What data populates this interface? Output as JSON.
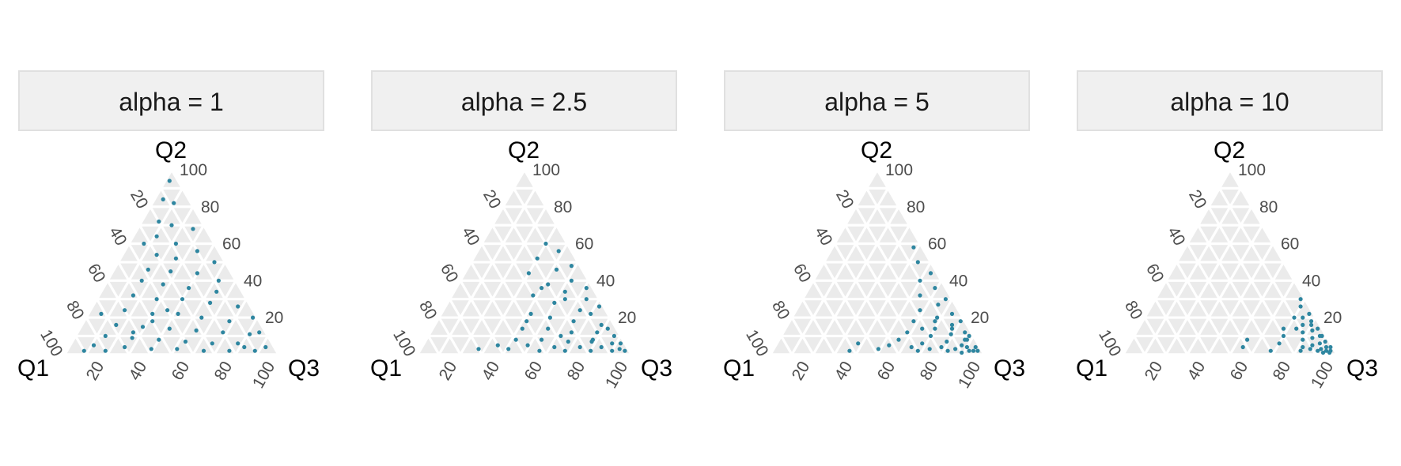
{
  "colors": {
    "point": "#2e86a0",
    "panel_cell": "#ebebeb",
    "grid_line": "#ffffff",
    "strip_fill": "#f0f0f0",
    "strip_border": "#e0e0e0",
    "tick_text": "#4d4d4d",
    "axis_text": "#000000"
  },
  "chart_data": [
    {
      "type": "scatter",
      "subtype": "ternary",
      "title": "alpha = 1",
      "axes": {
        "left": "Q1",
        "top": "Q2",
        "right": "Q3"
      },
      "ticks": [
        "20",
        "40",
        "60",
        "80",
        "100"
      ],
      "gridded": true,
      "distribution_note": "points spread roughly uniformly over the simplex",
      "points_q1_q2_q3": [
        [
          4,
          94,
          2
        ],
        [
          12,
          84,
          4
        ],
        [
          8,
          82,
          10
        ],
        [
          20,
          72,
          8
        ],
        [
          15,
          70,
          15
        ],
        [
          6,
          68,
          26
        ],
        [
          25,
          64,
          11
        ],
        [
          18,
          60,
          22
        ],
        [
          10,
          56,
          34
        ],
        [
          30,
          54,
          16
        ],
        [
          22,
          52,
          26
        ],
        [
          5,
          50,
          45
        ],
        [
          38,
          46,
          16
        ],
        [
          28,
          45,
          27
        ],
        [
          16,
          44,
          40
        ],
        [
          8,
          40,
          52
        ],
        [
          44,
          40,
          16
        ],
        [
          35,
          38,
          27
        ],
        [
          24,
          36,
          40
        ],
        [
          12,
          34,
          54
        ],
        [
          52,
          32,
          16
        ],
        [
          42,
          30,
          28
        ],
        [
          30,
          30,
          40
        ],
        [
          18,
          28,
          54
        ],
        [
          6,
          26,
          68
        ],
        [
          60,
          24,
          16
        ],
        [
          48,
          22,
          30
        ],
        [
          36,
          22,
          42
        ],
        [
          26,
          20,
          54
        ],
        [
          14,
          18,
          68
        ],
        [
          68,
          16,
          16
        ],
        [
          56,
          15,
          29
        ],
        [
          44,
          14,
          42
        ],
        [
          32,
          13,
          55
        ],
        [
          20,
          12,
          68
        ],
        [
          8,
          11,
          81
        ],
        [
          76,
          10,
          14
        ],
        [
          64,
          9,
          27
        ],
        [
          52,
          8,
          40
        ],
        [
          40,
          7,
          53
        ],
        [
          28,
          6,
          66
        ],
        [
          16,
          6,
          78
        ],
        [
          84,
          5,
          11
        ],
        [
          70,
          4,
          26
        ],
        [
          58,
          3,
          39
        ],
        [
          46,
          3,
          51
        ],
        [
          34,
          2,
          64
        ],
        [
          22,
          2,
          76
        ],
        [
          10,
          2,
          88
        ],
        [
          90,
          2,
          8
        ],
        [
          80,
          2,
          18
        ],
        [
          4,
          4,
          92
        ],
        [
          3,
          12,
          85
        ],
        [
          14,
          4,
          82
        ],
        [
          62,
          12,
          26
        ],
        [
          50,
          18,
          32
        ],
        [
          40,
          24,
          36
        ],
        [
          2,
          20,
          78
        ],
        [
          72,
          22,
          6
        ],
        [
          33,
          60,
          7
        ]
      ]
    },
    {
      "type": "scatter",
      "subtype": "ternary",
      "title": "alpha = 2.5",
      "axes": {
        "left": "Q1",
        "top": "Q2",
        "right": "Q3"
      },
      "ticks": [
        "20",
        "40",
        "60",
        "80",
        "100"
      ],
      "gridded": true,
      "distribution_note": "points concentrated toward the Q3 corner and low Q1",
      "points_q1_q2_q3": [
        [
          10,
          60,
          30
        ],
        [
          6,
          56,
          38
        ],
        [
          18,
          52,
          30
        ],
        [
          4,
          48,
          48
        ],
        [
          12,
          46,
          42
        ],
        [
          26,
          44,
          30
        ],
        [
          8,
          40,
          52
        ],
        [
          20,
          38,
          42
        ],
        [
          3,
          36,
          61
        ],
        [
          14,
          34,
          52
        ],
        [
          30,
          32,
          38
        ],
        [
          6,
          30,
          64
        ],
        [
          22,
          28,
          50
        ],
        [
          2,
          26,
          72
        ],
        [
          12,
          24,
          64
        ],
        [
          36,
          22,
          42
        ],
        [
          28,
          20,
          52
        ],
        [
          18,
          18,
          64
        ],
        [
          6,
          16,
          78
        ],
        [
          44,
          14,
          42
        ],
        [
          32,
          14,
          54
        ],
        [
          22,
          12,
          66
        ],
        [
          10,
          12,
          78
        ],
        [
          3,
          10,
          87
        ],
        [
          50,
          8,
          42
        ],
        [
          38,
          8,
          54
        ],
        [
          26,
          7,
          67
        ],
        [
          15,
          7,
          78
        ],
        [
          6,
          6,
          88
        ],
        [
          60,
          5,
          35
        ],
        [
          46,
          5,
          49
        ],
        [
          34,
          4,
          62
        ],
        [
          22,
          4,
          74
        ],
        [
          12,
          4,
          84
        ],
        [
          4,
          3,
          93
        ],
        [
          70,
          3,
          27
        ],
        [
          56,
          3,
          41
        ],
        [
          42,
          2,
          56
        ],
        [
          30,
          2,
          68
        ],
        [
          18,
          2,
          80
        ],
        [
          8,
          2,
          90
        ],
        [
          2,
          2,
          96
        ],
        [
          16,
          30,
          54
        ],
        [
          24,
          36,
          40
        ],
        [
          8,
          22,
          70
        ],
        [
          40,
          18,
          42
        ],
        [
          4,
          14,
          82
        ],
        [
          14,
          8,
          78
        ],
        [
          2,
          6,
          92
        ],
        [
          28,
          10,
          62
        ]
      ]
    },
    {
      "type": "scatter",
      "subtype": "ternary",
      "title": "alpha = 5",
      "axes": {
        "left": "Q1",
        "top": "Q2",
        "right": "Q3"
      },
      "ticks": [
        "20",
        "40",
        "60",
        "80",
        "100"
      ],
      "gridded": true,
      "distribution_note": "points concentrated near the Q3 corner",
      "points_q1_q2_q3": [
        [
          4,
          58,
          38
        ],
        [
          6,
          50,
          44
        ],
        [
          3,
          44,
          53
        ],
        [
          10,
          40,
          50
        ],
        [
          5,
          36,
          59
        ],
        [
          14,
          32,
          54
        ],
        [
          3,
          30,
          67
        ],
        [
          8,
          27,
          65
        ],
        [
          18,
          24,
          58
        ],
        [
          4,
          22,
          74
        ],
        [
          12,
          20,
          68
        ],
        [
          24,
          18,
          58
        ],
        [
          7,
          16,
          77
        ],
        [
          16,
          14,
          70
        ],
        [
          30,
          12,
          58
        ],
        [
          3,
          12,
          85
        ],
        [
          10,
          11,
          79
        ],
        [
          20,
          10,
          70
        ],
        [
          36,
          8,
          56
        ],
        [
          5,
          8,
          87
        ],
        [
          14,
          7,
          79
        ],
        [
          26,
          6,
          68
        ],
        [
          42,
          5,
          53
        ],
        [
          8,
          5,
          87
        ],
        [
          18,
          4,
          78
        ],
        [
          32,
          4,
          64
        ],
        [
          2,
          4,
          94
        ],
        [
          12,
          3,
          85
        ],
        [
          24,
          3,
          73
        ],
        [
          48,
          3,
          49
        ],
        [
          6,
          2,
          92
        ],
        [
          16,
          2,
          82
        ],
        [
          30,
          2,
          68
        ],
        [
          2,
          2,
          96
        ],
        [
          10,
          1,
          89
        ],
        [
          4,
          8,
          88
        ],
        [
          22,
          14,
          64
        ],
        [
          8,
          14,
          78
        ],
        [
          2,
          18,
          80
        ],
        [
          14,
          18,
          68
        ],
        [
          56,
          6,
          38
        ],
        [
          62,
          2,
          36
        ],
        [
          4,
          2,
          94
        ],
        [
          2,
          10,
          88
        ],
        [
          6,
          4,
          90
        ]
      ]
    },
    {
      "type": "scatter",
      "subtype": "ternary",
      "title": "alpha = 10",
      "axes": {
        "left": "Q1",
        "top": "Q2",
        "right": "Q3"
      },
      "ticks": [
        "20",
        "40",
        "60",
        "80",
        "100"
      ],
      "gridded": true,
      "distribution_note": "points tightly clustered at the Q3 corner",
      "points_q1_q2_q3": [
        [
          2,
          30,
          68
        ],
        [
          4,
          26,
          70
        ],
        [
          2,
          22,
          76
        ],
        [
          6,
          20,
          74
        ],
        [
          3,
          18,
          79
        ],
        [
          8,
          16,
          76
        ],
        [
          2,
          14,
          84
        ],
        [
          5,
          13,
          82
        ],
        [
          10,
          12,
          78
        ],
        [
          3,
          10,
          87
        ],
        [
          7,
          9,
          84
        ],
        [
          12,
          8,
          80
        ],
        [
          2,
          7,
          91
        ],
        [
          5,
          6,
          89
        ],
        [
          9,
          5,
          86
        ],
        [
          14,
          4,
          82
        ],
        [
          3,
          4,
          93
        ],
        [
          6,
          3,
          91
        ],
        [
          11,
          3,
          86
        ],
        [
          2,
          2,
          96
        ],
        [
          4,
          2,
          94
        ],
        [
          8,
          2,
          90
        ],
        [
          16,
          2,
          82
        ],
        [
          3,
          1,
          96
        ],
        [
          6,
          1,
          93
        ],
        [
          20,
          10,
          70
        ],
        [
          24,
          6,
          70
        ],
        [
          18,
          14,
          68
        ],
        [
          30,
          2,
          68
        ],
        [
          42,
          4,
          54
        ],
        [
          38,
          8,
          54
        ],
        [
          10,
          20,
          70
        ],
        [
          4,
          16,
          80
        ],
        [
          2,
          10,
          88
        ],
        [
          12,
          14,
          74
        ],
        [
          1,
          4,
          95
        ]
      ]
    }
  ]
}
